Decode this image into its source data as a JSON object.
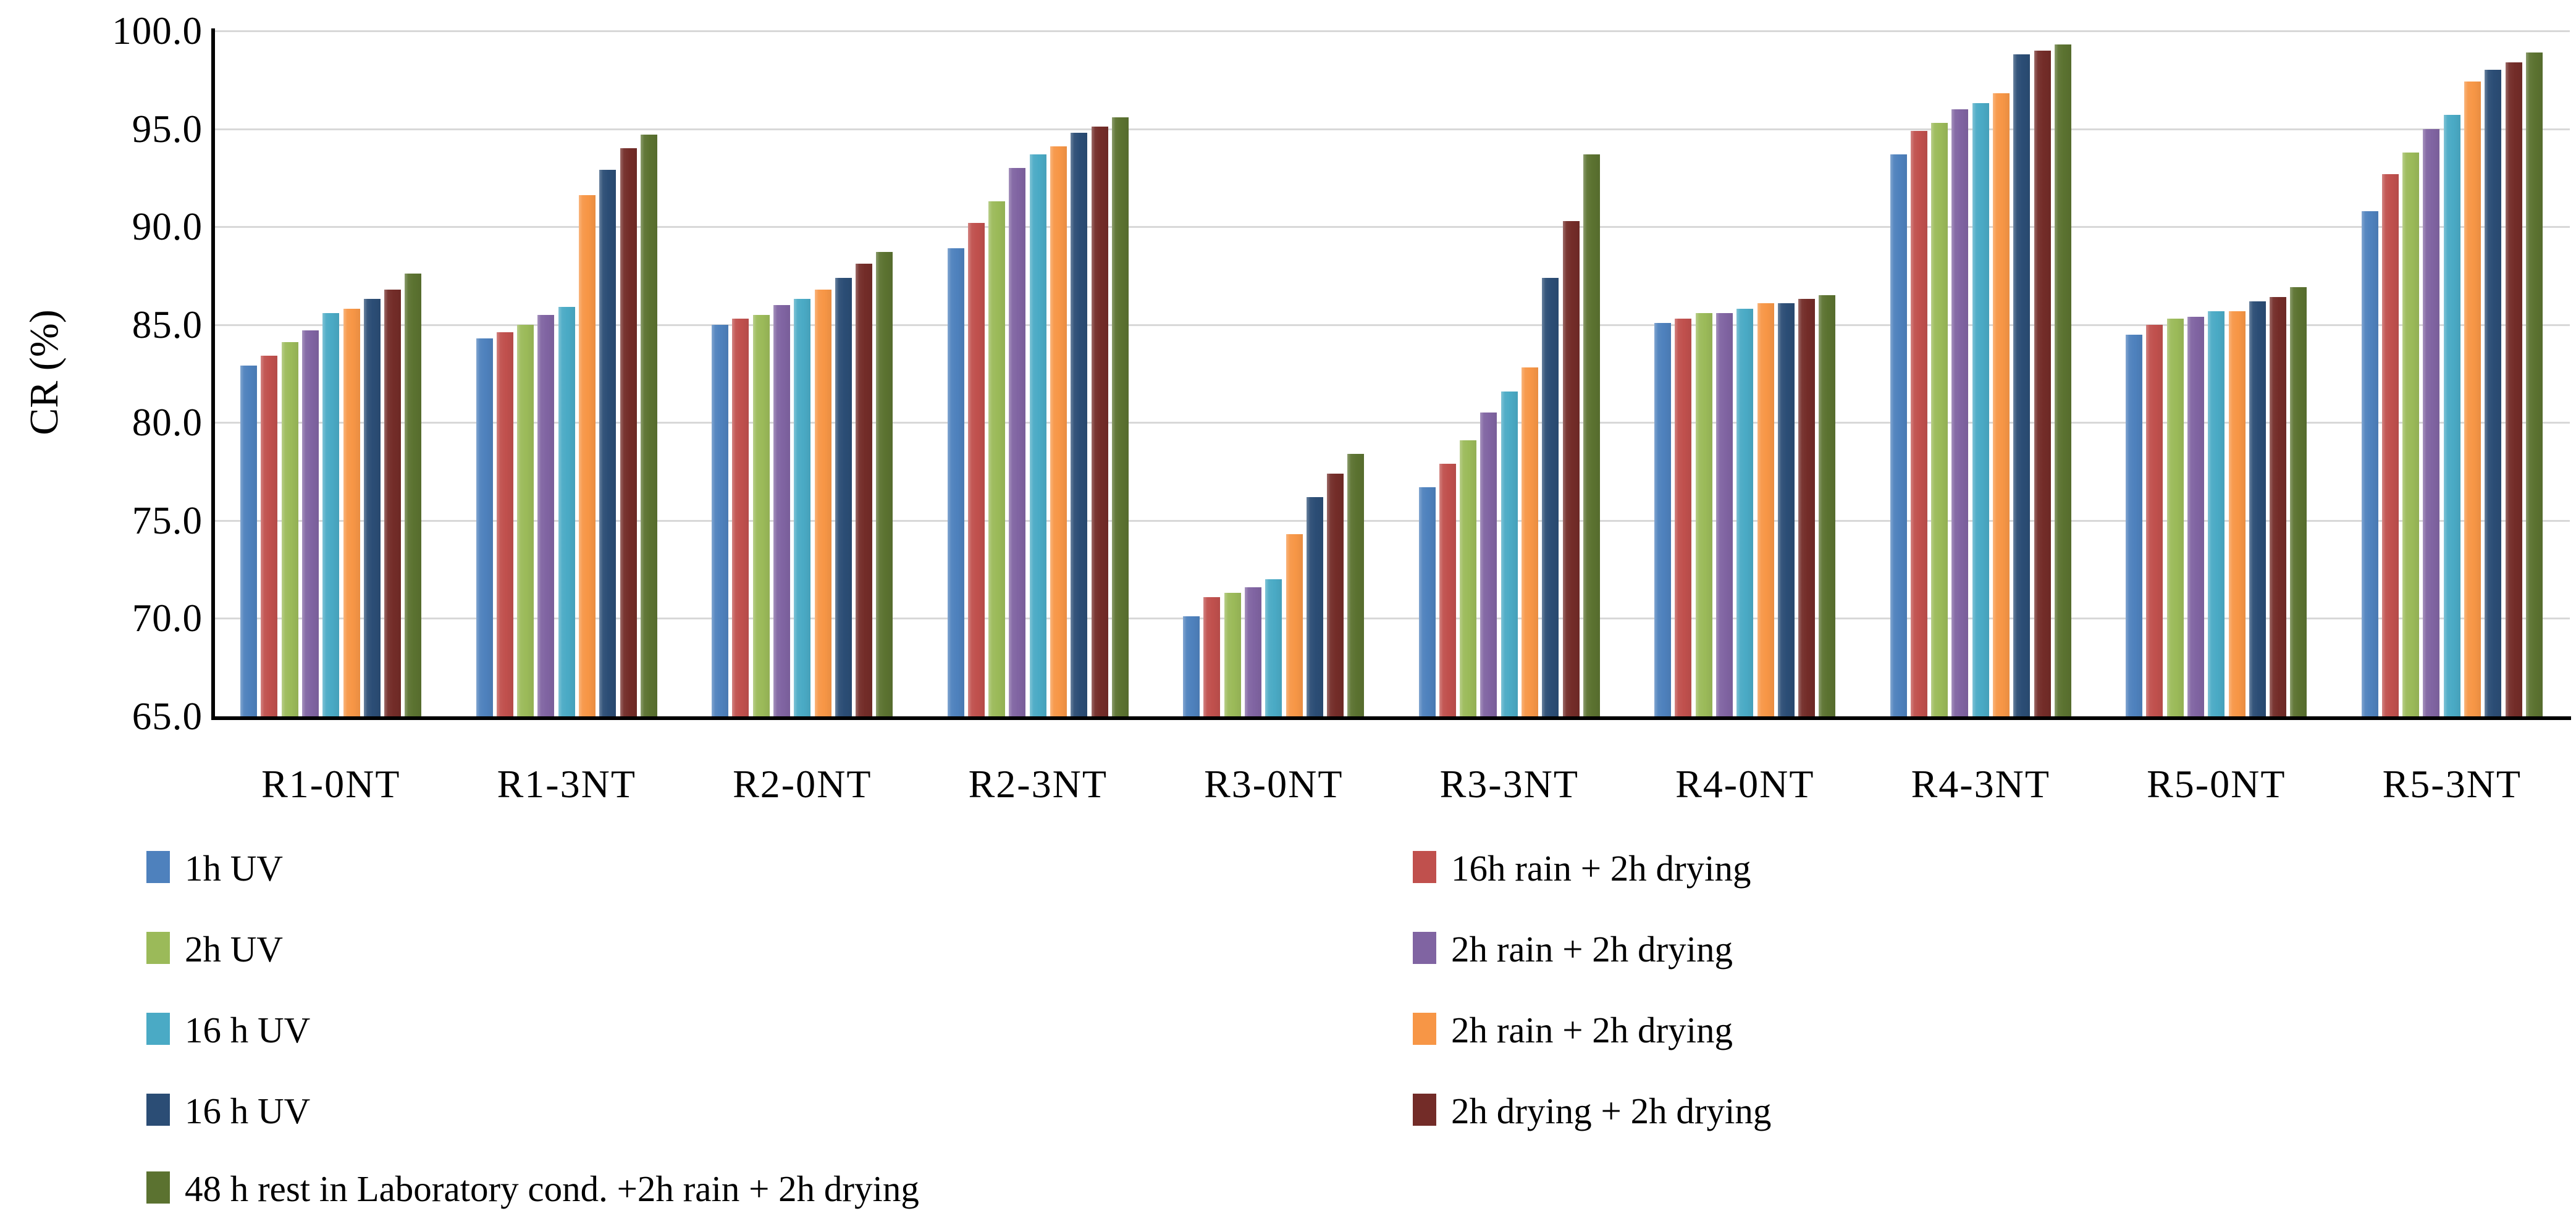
{
  "chart_data": {
    "type": "bar",
    "title": "",
    "xlabel": "",
    "ylabel": "CR (%)",
    "ylim": [
      65,
      100
    ],
    "yticks": [
      100,
      95,
      90,
      85,
      80,
      75,
      70,
      65
    ],
    "ytick_labels": [
      "100.0",
      "95.0",
      "90.0",
      "85.0",
      "80.0",
      "75.0",
      "70.0",
      "65.0"
    ],
    "grid": true,
    "legend_position": "bottom-two-columns",
    "categories": [
      "R1-0NT",
      "R1-3NT",
      "R2-0NT",
      "R2-3NT",
      "R3-0NT",
      "R3-3NT",
      "R4-0NT",
      "R4-3NT",
      "R5-0NT",
      "R5-3NT"
    ],
    "series": [
      {
        "name": "1h UV",
        "color": "#4E81BD",
        "values": [
          82.9,
          84.3,
          85.0,
          88.9,
          70.1,
          76.7,
          85.1,
          93.7,
          84.5,
          90.8
        ]
      },
      {
        "name": "16h rain + 2h drying",
        "color": "#C0504D",
        "values": [
          83.4,
          84.6,
          85.3,
          90.2,
          71.1,
          77.9,
          85.3,
          94.9,
          85.0,
          92.7
        ]
      },
      {
        "name": "2h UV",
        "color": "#9BBA59",
        "values": [
          84.1,
          85.0,
          85.5,
          91.3,
          71.3,
          79.1,
          85.6,
          95.3,
          85.3,
          93.8
        ]
      },
      {
        "name": "2h rain + 2h drying",
        "color": "#8064A2",
        "values": [
          84.7,
          85.5,
          86.0,
          93.0,
          71.6,
          80.5,
          85.6,
          96.0,
          85.4,
          95.0
        ]
      },
      {
        "name": "16 h UV",
        "color": "#4AAAC5",
        "values": [
          85.6,
          85.9,
          86.3,
          93.7,
          72.0,
          81.6,
          85.8,
          96.3,
          85.7,
          95.7
        ]
      },
      {
        "name": "2h rain + 2h drying",
        "color": "#F79646",
        "values": [
          85.8,
          91.6,
          86.8,
          94.1,
          74.3,
          82.8,
          86.1,
          96.8,
          85.7,
          97.4
        ]
      },
      {
        "name": "16 h UV",
        "color": "#2B4D75",
        "values": [
          86.3,
          92.9,
          87.4,
          94.8,
          76.2,
          87.4,
          86.1,
          98.8,
          86.2,
          98.0
        ]
      },
      {
        "name": "2h drying + 2h drying",
        "color": "#732C28",
        "values": [
          86.8,
          94.0,
          88.1,
          95.1,
          77.4,
          90.3,
          86.3,
          99.0,
          86.4,
          98.4
        ]
      },
      {
        "name": "48 h rest in Laboratory cond. +2h rain + 2h drying",
        "color": "#5B7230",
        "values": [
          87.6,
          94.7,
          88.7,
          95.6,
          78.4,
          93.7,
          86.5,
          99.3,
          86.9,
          98.9
        ]
      }
    ],
    "legend": {
      "left_column_series_indices": [
        0,
        2,
        4,
        6,
        8
      ],
      "right_column_series_indices": [
        1,
        3,
        5,
        7
      ]
    }
  }
}
